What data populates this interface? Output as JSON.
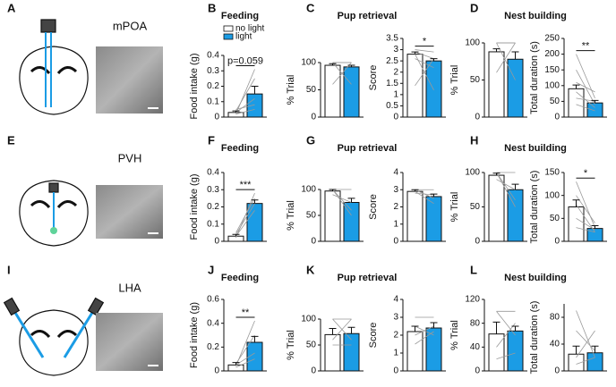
{
  "rows": [
    {
      "letters": [
        "A",
        "B",
        "C",
        "D"
      ],
      "region": "mPOA",
      "titles": [
        "Feeding",
        "Pup retrieval",
        "Nest building"
      ]
    },
    {
      "letters": [
        "E",
        "F",
        "G",
        "H"
      ],
      "region": "PVH",
      "titles": [
        "Feeding",
        "Pup retrieval",
        "Nest building"
      ]
    },
    {
      "letters": [
        "I",
        "J",
        "K",
        "L"
      ],
      "region": "LHA",
      "titles": [
        "Feeding",
        "Pup retrieval",
        "Nest building"
      ]
    }
  ],
  "legend": [
    {
      "name": "no light",
      "color": "#ffffff"
    },
    {
      "name": "light",
      "color": "#1b9ce5"
    }
  ],
  "chart_data": [
    {
      "type": "bar",
      "ylabel": "Food intake (g)",
      "ylim": [
        0,
        0.4
      ],
      "yticks": [
        0,
        0.1,
        0.2,
        0.3,
        0.4
      ],
      "values": [
        0.03,
        0.15
      ],
      "errors": [
        0.01,
        0.05
      ],
      "annotation": "p=0.059",
      "pairs": [
        [
          0.02,
          0.31
        ],
        [
          0.04,
          0.25
        ],
        [
          0.03,
          0.12
        ],
        [
          0.05,
          0.08
        ],
        [
          0.02,
          0.05
        ]
      ]
    },
    {
      "type": "bar",
      "ylabel": "% Trial",
      "ylim": [
        0,
        100
      ],
      "yticks": [
        0,
        50,
        100
      ],
      "values": [
        95,
        92
      ],
      "errors": [
        3,
        3
      ],
      "pairs": [
        [
          100,
          100
        ],
        [
          100,
          60
        ],
        [
          60,
          100
        ],
        [
          100,
          100
        ]
      ]
    },
    {
      "type": "bar",
      "ylabel": "Score",
      "ylim": [
        0,
        3.5
      ],
      "yticks": [
        0,
        0.5,
        1,
        1.5,
        2,
        2.5,
        3,
        3.5
      ],
      "values": [
        2.8,
        2.5
      ],
      "errors": [
        0.1,
        0.1
      ],
      "annotation": "*",
      "pairs": [
        [
          3,
          2.9
        ],
        [
          2.9,
          2.6
        ],
        [
          2.8,
          1.2
        ],
        [
          1.4,
          2.6
        ],
        [
          2.6,
          2.2
        ]
      ]
    },
    {
      "type": "bar",
      "ylabel": "% Trial",
      "ylim": [
        0,
        100
      ],
      "yticks": [
        0,
        50,
        100
      ],
      "values": [
        88,
        78
      ],
      "errors": [
        4,
        10
      ],
      "pairs": [
        [
          100,
          50
        ],
        [
          100,
          100
        ],
        [
          60,
          100
        ],
        [
          100,
          100
        ]
      ]
    },
    {
      "type": "bar",
      "ylabel": "Total duration (s)",
      "ylim": [
        0,
        250
      ],
      "yticks": [
        0,
        50,
        100,
        150,
        200,
        250
      ],
      "values": [
        90,
        45
      ],
      "errors": [
        12,
        8
      ],
      "annotation": "**",
      "pairs": [
        [
          200,
          60
        ],
        [
          150,
          40
        ],
        [
          110,
          80
        ],
        [
          80,
          30
        ],
        [
          60,
          50
        ],
        [
          40,
          20
        ]
      ]
    },
    {
      "type": "bar",
      "ylabel": "Food intake (g)",
      "ylim": [
        0,
        0.4
      ],
      "yticks": [
        0,
        0.1,
        0.2,
        0.3,
        0.4
      ],
      "values": [
        0.03,
        0.22
      ],
      "errors": [
        0.01,
        0.02
      ],
      "annotation": "***",
      "pairs": [
        [
          0.02,
          0.28
        ],
        [
          0.04,
          0.22
        ],
        [
          0.03,
          0.18
        ],
        [
          0.05,
          0.25
        ]
      ]
    },
    {
      "type": "bar",
      "ylabel": "% Trial",
      "ylim": [
        0,
        100
      ],
      "yticks": [
        0,
        50,
        100
      ],
      "values": [
        97,
        75
      ],
      "errors": [
        3,
        8
      ],
      "pairs": [
        [
          100,
          100
        ],
        [
          100,
          50
        ],
        [
          90,
          75
        ],
        [
          100,
          60
        ]
      ]
    },
    {
      "type": "bar",
      "ylabel": "Score",
      "ylim": [
        0,
        4
      ],
      "yticks": [
        0,
        1,
        2,
        3,
        4
      ],
      "values": [
        2.9,
        2.6
      ],
      "errors": [
        0.1,
        0.15
      ],
      "pairs": [
        [
          3,
          3
        ],
        [
          2.9,
          2.2
        ],
        [
          2.8,
          2.7
        ],
        [
          3,
          2.5
        ]
      ]
    },
    {
      "type": "bar",
      "ylabel": "% Trial",
      "ylim": [
        0,
        100
      ],
      "yticks": [
        0,
        50,
        100
      ],
      "values": [
        96,
        75
      ],
      "errors": [
        3,
        8
      ],
      "pairs": [
        [
          100,
          100
        ],
        [
          100,
          50
        ],
        [
          90,
          75
        ],
        [
          100,
          60
        ]
      ]
    },
    {
      "type": "bar",
      "ylabel": "Total duration (s)",
      "ylim": [
        0,
        150
      ],
      "yticks": [
        0,
        50,
        100,
        150
      ],
      "values": [
        75,
        28
      ],
      "errors": [
        15,
        6
      ],
      "annotation": "*",
      "pairs": [
        [
          130,
          30
        ],
        [
          100,
          40
        ],
        [
          80,
          20
        ],
        [
          50,
          25
        ],
        [
          30,
          20
        ]
      ]
    },
    {
      "type": "bar",
      "ylabel": "Food intake (g)",
      "ylim": [
        0,
        0.6
      ],
      "yticks": [
        0,
        0.2,
        0.4,
        0.6
      ],
      "values": [
        0.05,
        0.24
      ],
      "errors": [
        0.02,
        0.05
      ],
      "annotation": "**",
      "pairs": [
        [
          0.04,
          0.42
        ],
        [
          0.06,
          0.3
        ],
        [
          0.05,
          0.15
        ],
        [
          0.03,
          0.1
        ]
      ]
    },
    {
      "type": "bar",
      "ylabel": "% Trial",
      "ylim": [
        0,
        100
      ],
      "yticks": [
        0,
        50,
        100
      ],
      "values": [
        70,
        72
      ],
      "errors": [
        12,
        12
      ],
      "pairs": [
        [
          100,
          100
        ],
        [
          100,
          60
        ],
        [
          60,
          100
        ],
        [
          50,
          50
        ]
      ]
    },
    {
      "type": "bar",
      "ylabel": "Score",
      "ylim": [
        0,
        4
      ],
      "yticks": [
        0,
        1,
        2,
        3,
        4
      ],
      "values": [
        2.2,
        2.4
      ],
      "errors": [
        0.3,
        0.3
      ],
      "pairs": [
        [
          3,
          3
        ],
        [
          2,
          2.5
        ],
        [
          2.5,
          2
        ],
        [
          1.5,
          2.2
        ]
      ]
    },
    {
      "type": "bar",
      "ylabel": "% Trial",
      "ylim": [
        0,
        120
      ],
      "yticks": [
        0,
        40,
        80,
        120
      ],
      "values": [
        62,
        67
      ],
      "errors": [
        20,
        8
      ],
      "pairs": [
        [
          100,
          100
        ],
        [
          100,
          60
        ],
        [
          40,
          80
        ],
        [
          20,
          30
        ]
      ]
    },
    {
      "type": "bar",
      "ylabel": "Total duration (s)",
      "ylim": [
        0,
        100
      ],
      "yticks": [
        0,
        40,
        80
      ],
      "values": [
        25,
        27
      ],
      "errors": [
        12,
        10
      ],
      "pairs": [
        [
          90,
          20
        ],
        [
          60,
          30
        ],
        [
          20,
          60
        ],
        [
          10,
          20
        ]
      ]
    }
  ]
}
